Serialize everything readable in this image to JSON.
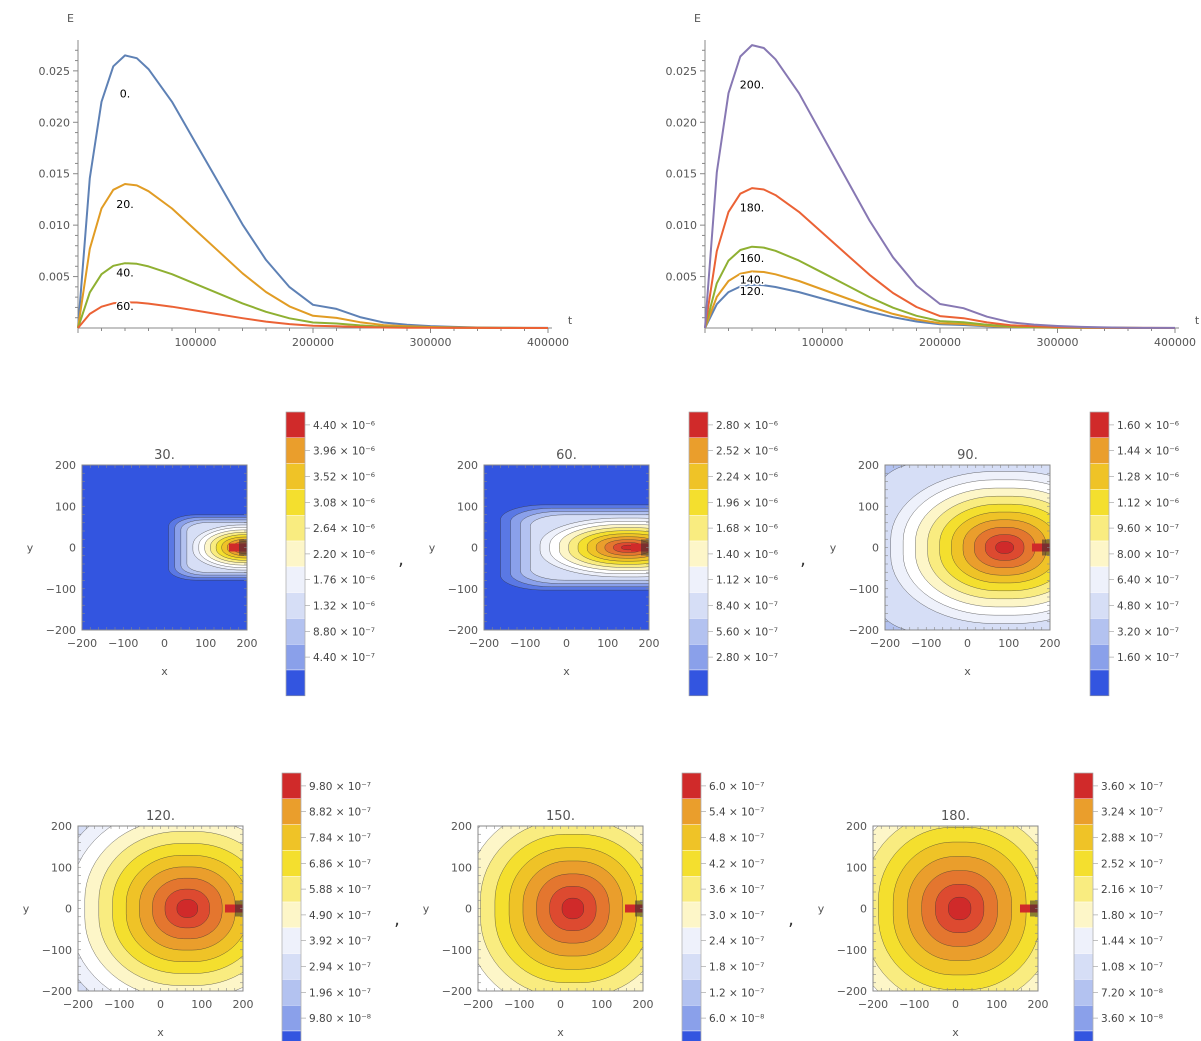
{
  "chart_data": [
    {
      "type": "line",
      "ylabel": "E",
      "xlabel": "t",
      "xlim": [
        0,
        400000
      ],
      "ylim": [
        0,
        0.028
      ],
      "xticks": [
        "100000",
        "200000",
        "300000",
        "400000"
      ],
      "yticks": [
        "0.005",
        "0.010",
        "0.015",
        "0.020",
        "0.025"
      ],
      "series": [
        {
          "name": "0.",
          "color": "#5e81b5",
          "peak": 0.0265
        },
        {
          "name": "20.",
          "color": "#e19c24",
          "peak": 0.014
        },
        {
          "name": "40.",
          "color": "#8fb032",
          "peak": 0.0063
        },
        {
          "name": "60.",
          "color": "#eb6235",
          "peak": 0.0025
        }
      ],
      "x": [
        0,
        10000,
        20000,
        30000,
        40000,
        50000,
        60000,
        80000,
        100000,
        120000,
        140000,
        160000,
        180000,
        200000,
        220000,
        240000,
        260000,
        280000,
        300000,
        320000,
        340000,
        360000,
        380000,
        400000
      ],
      "shape": [
        0,
        0.55,
        0.83,
        0.96,
        1.0,
        0.99,
        0.95,
        0.83,
        0.68,
        0.53,
        0.38,
        0.25,
        0.15,
        0.085,
        0.07,
        0.04,
        0.02,
        0.012,
        0.007,
        0.004,
        0.002,
        0.001,
        0.0005,
        0.0002
      ]
    },
    {
      "type": "line",
      "ylabel": "E",
      "xlabel": "t",
      "xlim": [
        0,
        400000
      ],
      "ylim": [
        0,
        0.028
      ],
      "xticks": [
        "100000",
        "200000",
        "300000",
        "400000"
      ],
      "yticks": [
        "0.005",
        "0.010",
        "0.015",
        "0.020",
        "0.025"
      ],
      "series": [
        {
          "name": "120.",
          "color": "#5e81b5",
          "peak": 0.0042
        },
        {
          "name": "140.",
          "color": "#e19c24",
          "peak": 0.0055
        },
        {
          "name": "160.",
          "color": "#8fb032",
          "peak": 0.0079
        },
        {
          "name": "180.",
          "color": "#eb6235",
          "peak": 0.0136
        },
        {
          "name": "200.",
          "color": "#8778b3",
          "peak": 0.0275
        }
      ],
      "x": [
        0,
        10000,
        20000,
        30000,
        40000,
        50000,
        60000,
        80000,
        100000,
        120000,
        140000,
        160000,
        180000,
        200000,
        220000,
        240000,
        260000,
        280000,
        300000,
        320000,
        340000,
        360000,
        380000,
        400000
      ],
      "shape": [
        0,
        0.55,
        0.83,
        0.96,
        1.0,
        0.99,
        0.95,
        0.83,
        0.68,
        0.53,
        0.38,
        0.25,
        0.15,
        0.085,
        0.07,
        0.04,
        0.02,
        0.012,
        0.007,
        0.004,
        0.002,
        0.001,
        0.0005,
        0.0002
      ]
    },
    {
      "type": "heatmap",
      "title": "30.",
      "xlabel": "x",
      "ylabel": "y",
      "xticks": [
        "−200",
        "−100",
        "0",
        "100",
        "200"
      ],
      "yticks": [
        "200",
        "100",
        "0",
        "−100",
        "−200"
      ],
      "peak_x": 200,
      "peak_y": 0,
      "stretch": 2.4,
      "reach": 0.95,
      "legend": [
        "4.40 × 10⁻⁶",
        "3.96 × 10⁻⁶",
        "3.52 × 10⁻⁶",
        "3.08 × 10⁻⁶",
        "2.64 × 10⁻⁶",
        "2.20 × 10⁻⁶",
        "1.76 × 10⁻⁶",
        "1.32 × 10⁻⁶",
        "8.80 × 10⁻⁷",
        "4.40 × 10⁻⁷"
      ]
    },
    {
      "type": "heatmap",
      "title": "60.",
      "xlabel": "x",
      "ylabel": "y",
      "xticks": [
        "−200",
        "−100",
        "0",
        "100",
        "200"
      ],
      "yticks": [
        "200",
        "100",
        "0",
        "−100",
        "−200"
      ],
      "peak_x": 150,
      "peak_y": 0,
      "stretch": 3.0,
      "reach": 1.55,
      "legend": [
        "2.80 × 10⁻⁶",
        "2.52 × 10⁻⁶",
        "2.24 × 10⁻⁶",
        "1.96 × 10⁻⁶",
        "1.68 × 10⁻⁶",
        "1.40 × 10⁻⁶",
        "1.12 × 10⁻⁶",
        "8.40 × 10⁻⁷",
        "5.60 × 10⁻⁷",
        "2.80 × 10⁻⁷"
      ]
    },
    {
      "type": "heatmap",
      "title": "90.",
      "xlabel": "x",
      "ylabel": "y",
      "xticks": [
        "−200",
        "−100",
        "0",
        "100",
        "200"
      ],
      "yticks": [
        "200",
        "100",
        "0",
        "−100",
        "−200"
      ],
      "peak_x": 90,
      "peak_y": 0,
      "stretch": 1.5,
      "reach": 2.0,
      "legend": [
        "1.60 × 10⁻⁶",
        "1.44 × 10⁻⁶",
        "1.28 × 10⁻⁶",
        "1.12 × 10⁻⁶",
        "9.60 × 10⁻⁷",
        "8.00 × 10⁻⁷",
        "6.40 × 10⁻⁷",
        "4.80 × 10⁻⁷",
        "3.20 × 10⁻⁷",
        "1.60 × 10⁻⁷"
      ]
    },
    {
      "type": "heatmap",
      "title": "120.",
      "xlabel": "x",
      "ylabel": "y",
      "xticks": [
        "−200",
        "−100",
        "0",
        "100",
        "200"
      ],
      "yticks": [
        "200",
        "100",
        "0",
        "−100",
        "−200"
      ],
      "peak_x": 65,
      "peak_y": 0,
      "stretch": 1.15,
      "reach": 2.3,
      "legend": [
        "9.80 × 10⁻⁷",
        "8.82 × 10⁻⁷",
        "7.84 × 10⁻⁷",
        "6.86 × 10⁻⁷",
        "5.88 × 10⁻⁷",
        "4.90 × 10⁻⁷",
        "3.92 × 10⁻⁷",
        "2.94 × 10⁻⁷",
        "1.96 × 10⁻⁷",
        "9.80 × 10⁻⁸"
      ]
    },
    {
      "type": "heatmap",
      "title": "150.",
      "xlabel": "x",
      "ylabel": "y",
      "xticks": [
        "−200",
        "−100",
        "0",
        "100",
        "200"
      ],
      "yticks": [
        "200",
        "100",
        "0",
        "−100",
        "−200"
      ],
      "peak_x": 30,
      "peak_y": 0,
      "stretch": 1.05,
      "reach": 2.4,
      "legend": [
        "6.0 × 10⁻⁷",
        "5.4 × 10⁻⁷",
        "4.8 × 10⁻⁷",
        "4.2 × 10⁻⁷",
        "3.6 × 10⁻⁷",
        "3.0 × 10⁻⁷",
        "2.4 × 10⁻⁷",
        "1.8 × 10⁻⁷",
        "1.2 × 10⁻⁷",
        "6.0 × 10⁻⁸"
      ]
    },
    {
      "type": "heatmap",
      "title": "180.",
      "xlabel": "x",
      "ylabel": "y",
      "xticks": [
        "−200",
        "−100",
        "0",
        "100",
        "200"
      ],
      "yticks": [
        "200",
        "100",
        "0",
        "−100",
        "−200"
      ],
      "peak_x": 10,
      "peak_y": 0,
      "stretch": 1.0,
      "reach": 2.5,
      "legend": [
        "3.60 × 10⁻⁷",
        "3.24 × 10⁻⁷",
        "2.88 × 10⁻⁷",
        "2.52 × 10⁻⁷",
        "2.16 × 10⁻⁷",
        "1.80 × 10⁻⁷",
        "1.44 × 10⁻⁷",
        "1.08 × 10⁻⁷",
        "7.20 × 10⁻⁸",
        "3.60 × 10⁻⁸"
      ]
    }
  ],
  "separator": ",",
  "colors": {
    "background_blue": "#3355e0",
    "colormap": [
      "#3355e0",
      "#5a78e4",
      "#8aa0ea",
      "#b3c2f0",
      "#d6def6",
      "#eef1fb",
      "#ffffff",
      "#fdf6c8",
      "#f9ec80",
      "#f4df2e",
      "#efc327",
      "#ea9e2c",
      "#e4762f",
      "#dd4a30",
      "#d02a2a"
    ],
    "axis": "#888888"
  }
}
